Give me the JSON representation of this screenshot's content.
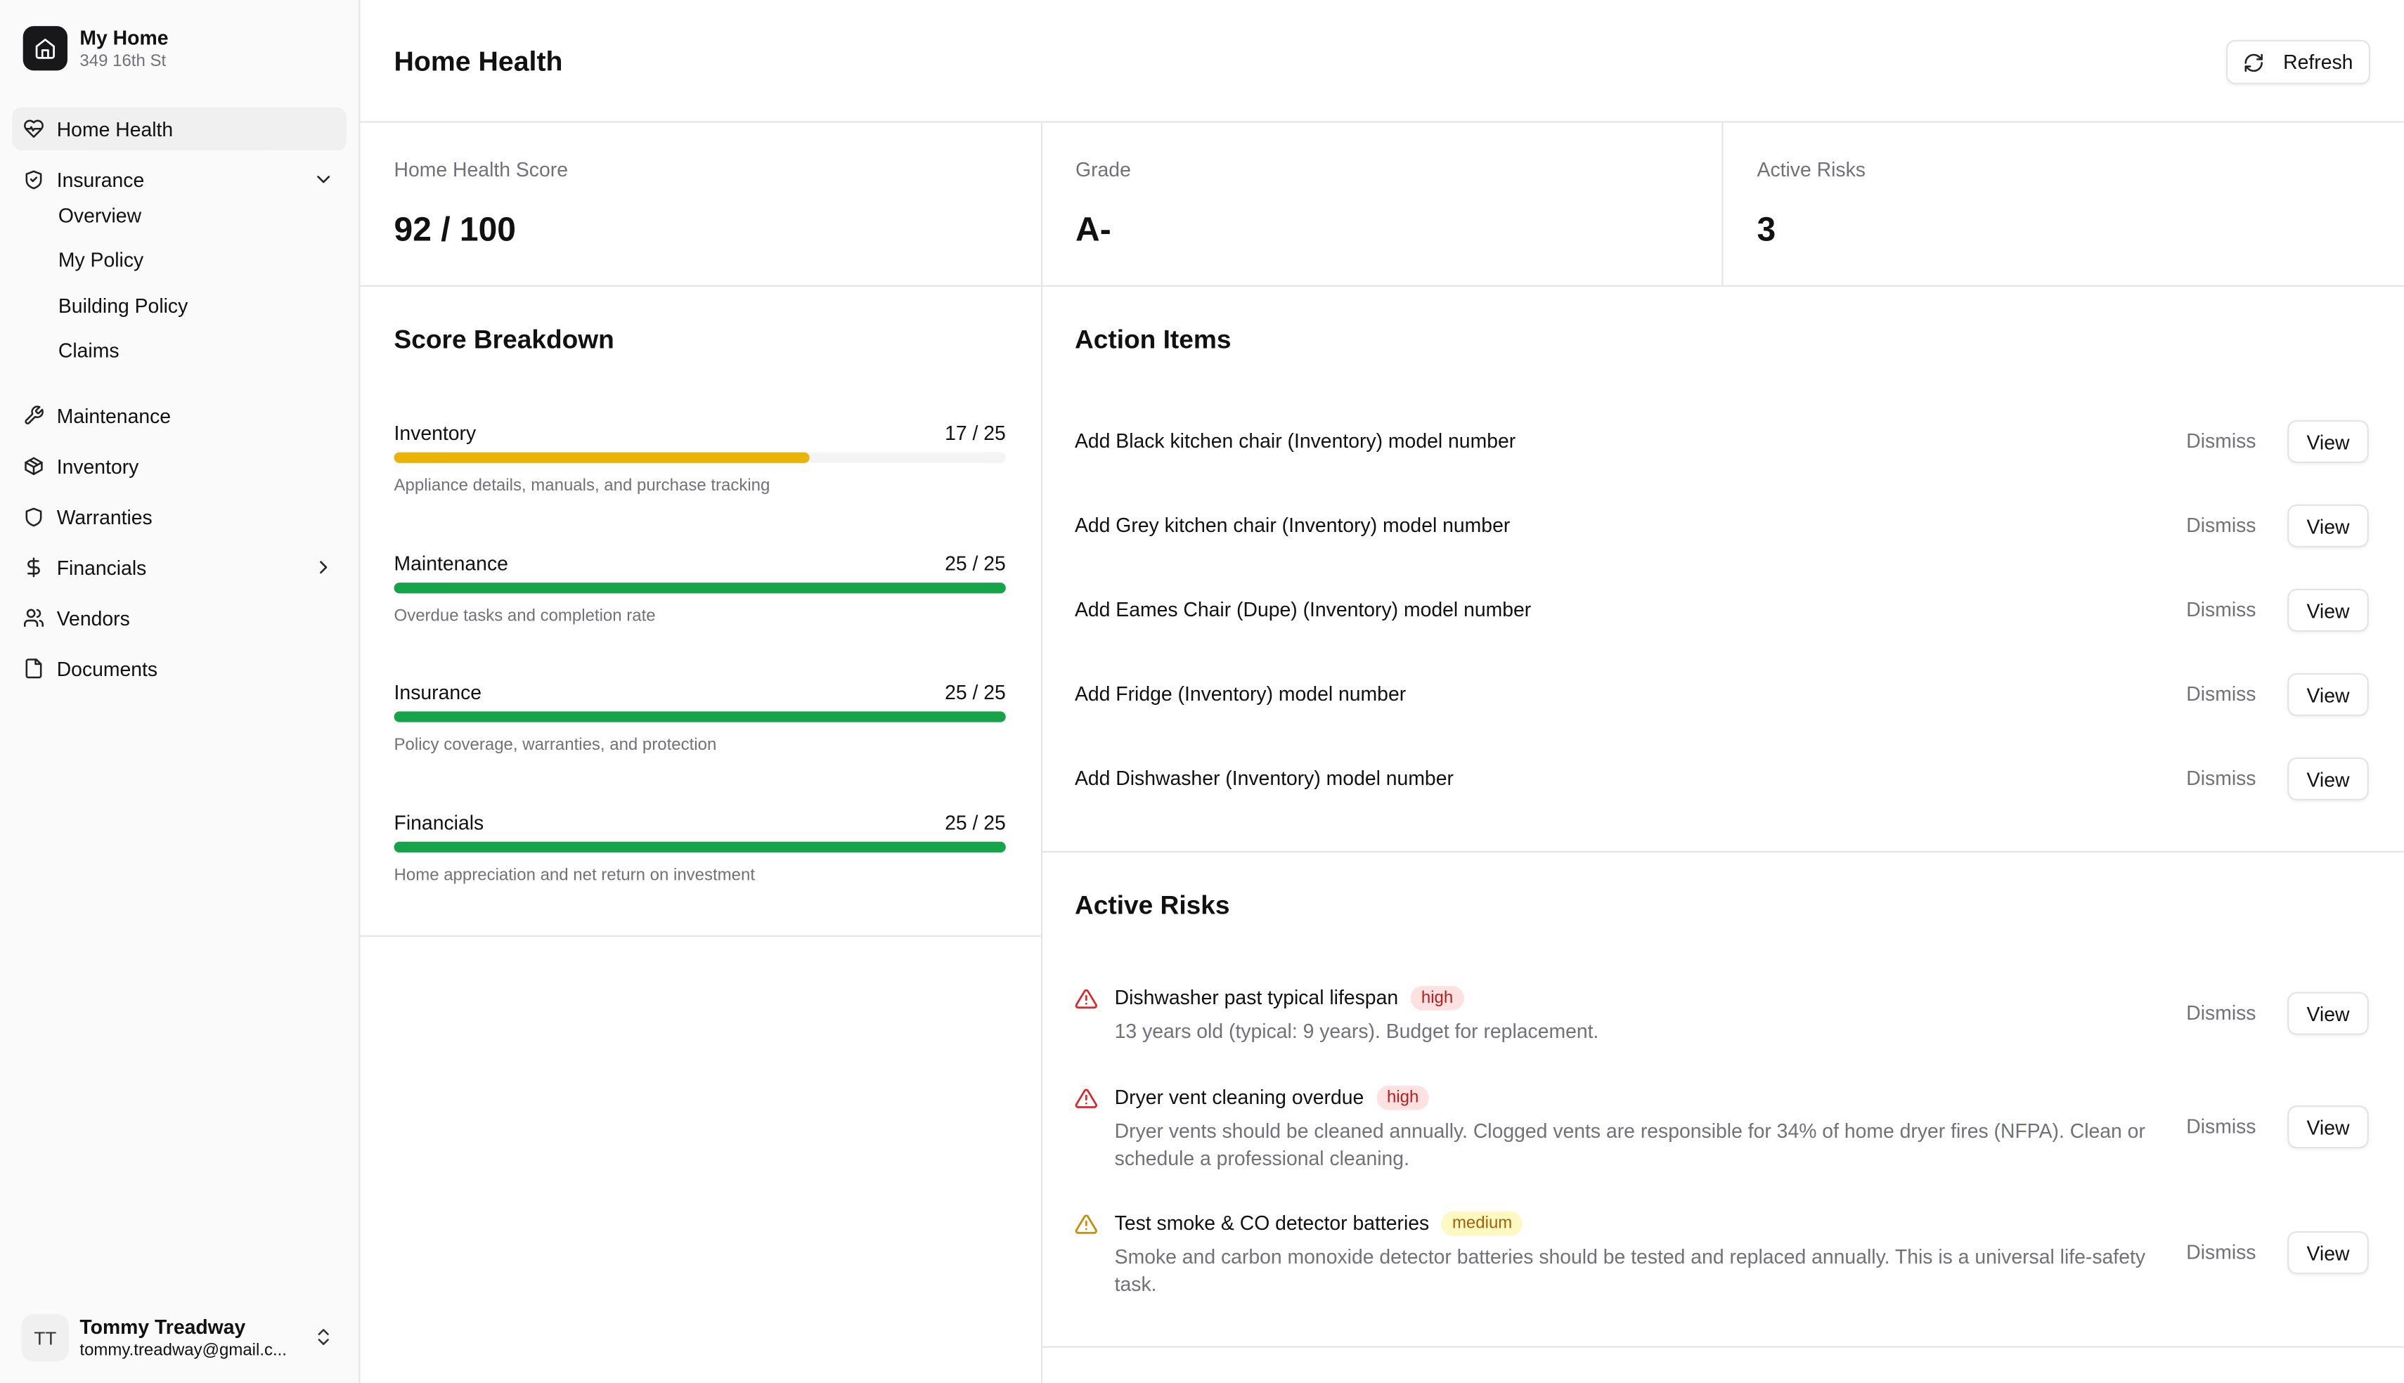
{
  "sidebar": {
    "home_name": "My Home",
    "home_address": "349 16th St",
    "nav": [
      {
        "label": "Home Health",
        "icon": "heart",
        "active": true
      },
      {
        "label": "Insurance",
        "icon": "shield-check",
        "chevron": "down",
        "children": [
          "Overview",
          "My Policy",
          "Building Policy",
          "Claims"
        ]
      },
      {
        "label": "Maintenance",
        "icon": "wrench"
      },
      {
        "label": "Inventory",
        "icon": "box"
      },
      {
        "label": "Warranties",
        "icon": "shield"
      },
      {
        "label": "Financials",
        "icon": "dollar",
        "chevron": "right"
      },
      {
        "label": "Vendors",
        "icon": "users"
      },
      {
        "label": "Documents",
        "icon": "file"
      }
    ],
    "user": {
      "initials": "TT",
      "name": "Tommy Treadway",
      "email": "tommy.treadway@gmail.c..."
    }
  },
  "header": {
    "title": "Home Health",
    "refresh": "Refresh"
  },
  "stats": [
    {
      "label": "Home Health Score",
      "value": "92 / 100"
    },
    {
      "label": "Grade",
      "value": "A-"
    },
    {
      "label": "Active Risks",
      "value": "3"
    }
  ],
  "breakdown": {
    "title": "Score Breakdown",
    "items": [
      {
        "name": "Inventory",
        "score_label": "17 / 25",
        "score": 17,
        "max": 25,
        "color": "#eab308",
        "description": "Appliance details, manuals, and purchase tracking"
      },
      {
        "name": "Maintenance",
        "score_label": "25 / 25",
        "score": 25,
        "max": 25,
        "color": "#16a34a",
        "description": "Overdue tasks and completion rate"
      },
      {
        "name": "Insurance",
        "score_label": "25 / 25",
        "score": 25,
        "max": 25,
        "color": "#16a34a",
        "description": "Policy coverage, warranties, and protection"
      },
      {
        "name": "Financials",
        "score_label": "25 / 25",
        "score": 25,
        "max": 25,
        "color": "#16a34a",
        "description": "Home appreciation and net return on investment"
      }
    ]
  },
  "buttons": {
    "dismiss": "Dismiss",
    "view": "View"
  },
  "action_items": {
    "title": "Action Items",
    "items": [
      "Add Black kitchen chair (Inventory) model number",
      "Add Grey kitchen chair (Inventory) model number",
      "Add Eames Chair (Dupe) (Inventory) model number",
      "Add Fridge (Inventory) model number",
      "Add Dishwasher (Inventory) model number"
    ]
  },
  "active_risks": {
    "title": "Active Risks",
    "items": [
      {
        "title": "Dishwasher past typical lifespan",
        "severity": "high",
        "description": "13 years old (typical: 9 years). Budget for replacement."
      },
      {
        "title": "Dryer vent cleaning overdue",
        "severity": "high",
        "description": "Dryer vents should be cleaned annually. Clogged vents are responsible for 34% of home dryer fires (NFPA). Clean or schedule a professional cleaning."
      },
      {
        "title": "Test smoke & CO detector batteries",
        "severity": "medium",
        "description": "Smoke and carbon monoxide detector batteries should be tested and replaced annually. This is a universal life-safety task."
      }
    ]
  }
}
